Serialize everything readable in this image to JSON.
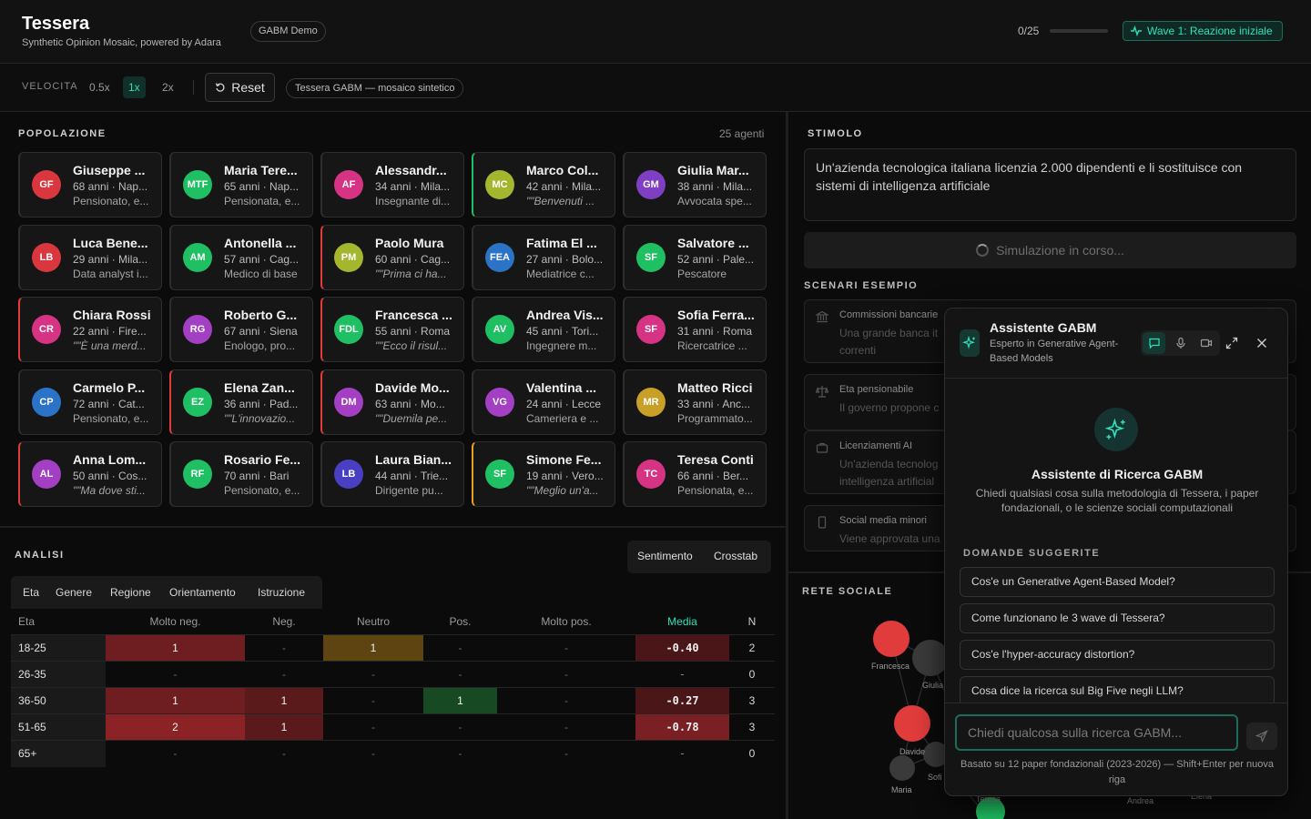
{
  "header": {
    "title": "Tessera",
    "subtitle": "Synthetic Opinion Mosaic, powered by Adara",
    "demo_badge": "GABM Demo",
    "progress_text": "0/25",
    "progress_fraction": 0,
    "wave_label": "Wave 1: Reazione iniziale",
    "accent_color": "#2fe0bb"
  },
  "toolbar": {
    "speed_label": "VELOCITA",
    "speeds": [
      "0.5x",
      "1x",
      "2x"
    ],
    "active_speed": "1x",
    "reset_label": "Reset",
    "tessera_badge": "Tessera GABM — mosaico sintetico"
  },
  "population": {
    "label": "POPOLAZIONE",
    "count": "25 agenti",
    "agents": [
      {
        "initials": "GF",
        "name": "Giuseppe ...",
        "meta": "68 anni · Nap...",
        "role": "Pensionato, e...",
        "color": "#d9363e",
        "sentiment": "#2e2e2e"
      },
      {
        "initials": "MTF",
        "name": "Maria Tere...",
        "meta": "65 anni · Nap...",
        "role": "Pensionata, e...",
        "color": "#1fbf63",
        "sentiment": "#2e2e2e"
      },
      {
        "initials": "AF",
        "name": "Alessandr...",
        "meta": "34 anni · Mila...",
        "role": "Insegnante di...",
        "color": "#d63384",
        "sentiment": "#2e2e2e"
      },
      {
        "initials": "MC",
        "name": "Marco Col...",
        "meta": "42 anni · Mila...",
        "role": "\"\"Benvenuti ...",
        "color": "#a3b62e",
        "sentiment": "#1fbf63"
      },
      {
        "initials": "GM",
        "name": "Giulia Mar...",
        "meta": "38 anni · Mila...",
        "role": "Avvocata spe...",
        "color": "#7e3fc2",
        "sentiment": "#2e2e2e"
      },
      {
        "initials": "LB",
        "name": "Luca Bene...",
        "meta": "29 anni · Mila...",
        "role": "Data analyst i...",
        "color": "#d9363e",
        "sentiment": "#2e2e2e"
      },
      {
        "initials": "AM",
        "name": "Antonella ...",
        "meta": "57 anni · Cag...",
        "role": "Medico di base",
        "color": "#1fbf63",
        "sentiment": "#2e2e2e"
      },
      {
        "initials": "PM",
        "name": "Paolo Mura",
        "meta": "60 anni · Cag...",
        "role": "\"\"Prima ci ha...",
        "color": "#a3b62e",
        "sentiment": "#e03c3c"
      },
      {
        "initials": "FEA",
        "name": "Fatima El ...",
        "meta": "27 anni · Bolo...",
        "role": "Mediatrice c...",
        "color": "#2a73c7",
        "sentiment": "#2e2e2e"
      },
      {
        "initials": "SF",
        "name": "Salvatore ...",
        "meta": "52 anni · Pale...",
        "role": "Pescatore",
        "color": "#1fbf63",
        "sentiment": "#2e2e2e"
      },
      {
        "initials": "CR",
        "name": "Chiara Rossi",
        "meta": "22 anni · Fire...",
        "role": "\"\"È una merd...",
        "color": "#d63384",
        "sentiment": "#e03c3c"
      },
      {
        "initials": "RG",
        "name": "Roberto G...",
        "meta": "67 anni · Siena",
        "role": "Enologo, pro...",
        "color": "#a23fc2",
        "sentiment": "#2e2e2e"
      },
      {
        "initials": "FDL",
        "name": "Francesca ...",
        "meta": "55 anni · Roma",
        "role": "\"\"Ecco il risul...",
        "color": "#1fbf63",
        "sentiment": "#e03c3c"
      },
      {
        "initials": "AV",
        "name": "Andrea Vis...",
        "meta": "45 anni · Tori...",
        "role": "Ingegnere m...",
        "color": "#1fbf63",
        "sentiment": "#2e2e2e"
      },
      {
        "initials": "SF",
        "name": "Sofia Ferra...",
        "meta": "31 anni · Roma",
        "role": "Ricercatrice ...",
        "color": "#d63384",
        "sentiment": "#2e2e2e"
      },
      {
        "initials": "CP",
        "name": "Carmelo P...",
        "meta": "72 anni · Cat...",
        "role": "Pensionato, e...",
        "color": "#2a73c7",
        "sentiment": "#2e2e2e"
      },
      {
        "initials": "EZ",
        "name": "Elena Zan...",
        "meta": "36 anni · Pad...",
        "role": "\"\"L'innovazio...",
        "color": "#1fbf63",
        "sentiment": "#e03c3c"
      },
      {
        "initials": "DM",
        "name": "Davide Mo...",
        "meta": "63 anni · Mo...",
        "role": "\"\"Duemila pe...",
        "color": "#a23fc2",
        "sentiment": "#e03c3c"
      },
      {
        "initials": "VG",
        "name": "Valentina ...",
        "meta": "24 anni · Lecce",
        "role": "Cameriera e ...",
        "color": "#a23fc2",
        "sentiment": "#2e2e2e"
      },
      {
        "initials": "MR",
        "name": "Matteo Ricci",
        "meta": "33 anni · Anc...",
        "role": "Programmato...",
        "color": "#c8a028",
        "sentiment": "#2e2e2e"
      },
      {
        "initials": "AL",
        "name": "Anna Lom...",
        "meta": "50 anni · Cos...",
        "role": "\"\"Ma dove sti...",
        "color": "#a23fc2",
        "sentiment": "#e03c3c"
      },
      {
        "initials": "RF",
        "name": "Rosario Fe...",
        "meta": "70 anni · Bari",
        "role": "Pensionato, e...",
        "color": "#1fbf63",
        "sentiment": "#2e2e2e"
      },
      {
        "initials": "LB",
        "name": "Laura Bian...",
        "meta": "44 anni · Trie...",
        "role": "Dirigente pu...",
        "color": "#4a3fc2",
        "sentiment": "#2e2e2e"
      },
      {
        "initials": "SF",
        "name": "Simone Fe...",
        "meta": "19 anni · Vero...",
        "role": "\"\"Meglio un'a...",
        "color": "#1fbf63",
        "sentiment": "#e8a020"
      },
      {
        "initials": "TC",
        "name": "Teresa Conti",
        "meta": "66 anni · Ber...",
        "role": "Pensionata, e...",
        "color": "#d63384",
        "sentiment": "#2e2e2e"
      }
    ]
  },
  "analysis": {
    "label": "ANALISI",
    "toggles": [
      "Sentimento",
      "Crosstab"
    ],
    "dimensions": [
      "Eta",
      "Genere",
      "Regione",
      "Orientamento",
      "Istruzione"
    ],
    "headers": [
      "Eta",
      "Molto neg.",
      "Neg.",
      "Neutro",
      "Pos.",
      "Molto pos.",
      "Media",
      "N"
    ],
    "rows": [
      {
        "label": "18-25",
        "cells": [
          "1",
          "-",
          "1",
          "-",
          "-"
        ],
        "mean": "-0.40",
        "n": "2"
      },
      {
        "label": "26-35",
        "cells": [
          "-",
          "-",
          "-",
          "-",
          "-"
        ],
        "mean": "-",
        "n": "0"
      },
      {
        "label": "36-50",
        "cells": [
          "1",
          "1",
          "-",
          "1",
          "-"
        ],
        "mean": "-0.27",
        "n": "3"
      },
      {
        "label": "51-65",
        "cells": [
          "2",
          "1",
          "-",
          "-",
          "-"
        ],
        "mean": "-0.78",
        "n": "3"
      },
      {
        "label": "65+",
        "cells": [
          "-",
          "-",
          "-",
          "-",
          "-"
        ],
        "mean": "-",
        "n": "0"
      }
    ]
  },
  "stimulus": {
    "label": "STIMOLO",
    "text": "Un'azienda tecnologica italiana licenzia 2.000 dipendenti e li sostituisce con sistemi di intelligenza artificiale",
    "sim_button": "Simulazione in corso..."
  },
  "scenarios": {
    "label": "SCENARI ESEMPIO",
    "items": [
      {
        "title": "Commissioni bancarie",
        "desc": "Una grande banca it correnti",
        "icon": "bank-icon"
      },
      {
        "title": "Eta pensionabile",
        "desc": "Il governo propone c",
        "icon": "scale-icon"
      },
      {
        "title": "Licenziamenti AI",
        "desc": "Un'azienda tecnolog intelligenza artificial",
        "icon": "briefcase-icon"
      },
      {
        "title": "Social media minori",
        "desc": "Viene approvata una",
        "icon": "phone-icon"
      }
    ]
  },
  "network": {
    "label": "RETE SOCIALE",
    "node_labels": [
      "Francesca",
      "Giulia",
      "Davide",
      "Sofi",
      "Maria",
      "Teresa",
      "Andrea",
      "Elena"
    ]
  },
  "chat": {
    "title": "Assistente GABM",
    "subtitle": "Esperto in Generative Agent-Based Models",
    "welcome_title": "Assistente di Ricerca GABM",
    "welcome_desc": "Chiedi qualsiasi cosa sulla metodologia di Tessera, i paper fondazionali, o le scienze sociali computazionali",
    "suggested_label": "DOMANDE SUGGERITE",
    "suggestions": [
      "Cos'e un Generative Agent-Based Model?",
      "Come funzionano le 3 wave di Tessera?",
      "Cos'e l'hyper-accuracy distortion?",
      "Cosa dice la ricerca sul Big Five negli LLM?"
    ],
    "input_placeholder": "Chiedi qualcosa sulla ricerca GABM...",
    "footnote": "Basato su 12 paper fondazionali (2023-2026) — Shift+Enter per nuova riga"
  }
}
